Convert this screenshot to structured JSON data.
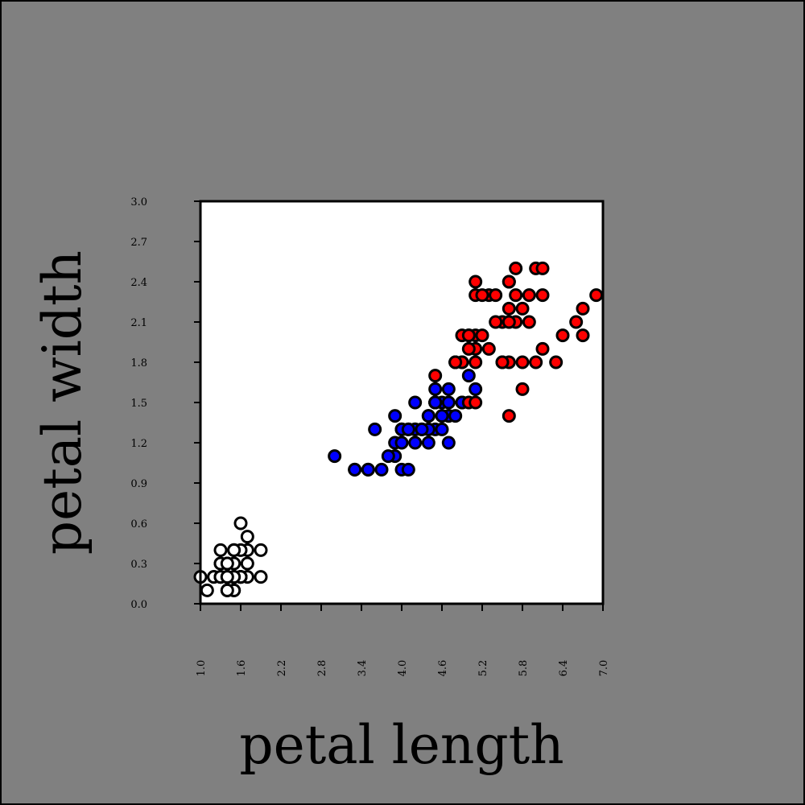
{
  "background_color": "#808080",
  "chart_data": {
    "type": "scatter",
    "xlabel": "petal length",
    "ylabel": "petal width",
    "xlim": [
      1.0,
      7.0
    ],
    "ylim": [
      0.0,
      3.0
    ],
    "xticks": [
      "1.0",
      "1.6",
      "2.2",
      "2.8",
      "3.4",
      "4.0",
      "4.6",
      "5.2",
      "5.8",
      "6.4",
      "7.0"
    ],
    "yticks": [
      "0.0",
      "0.3",
      "0.6",
      "0.9",
      "1.2",
      "1.5",
      "1.8",
      "2.1",
      "2.4",
      "2.7",
      "3.0"
    ],
    "grid": false,
    "legend": "none",
    "series": [
      {
        "color": "#ffffff",
        "points": [
          [
            1.4,
            0.2
          ],
          [
            1.4,
            0.2
          ],
          [
            1.3,
            0.2
          ],
          [
            1.5,
            0.2
          ],
          [
            1.4,
            0.2
          ],
          [
            1.7,
            0.4
          ],
          [
            1.4,
            0.3
          ],
          [
            1.5,
            0.2
          ],
          [
            1.4,
            0.2
          ],
          [
            1.5,
            0.1
          ],
          [
            1.5,
            0.2
          ],
          [
            1.6,
            0.2
          ],
          [
            1.4,
            0.1
          ],
          [
            1.1,
            0.1
          ],
          [
            1.2,
            0.2
          ],
          [
            1.5,
            0.4
          ],
          [
            1.3,
            0.4
          ],
          [
            1.4,
            0.3
          ],
          [
            1.7,
            0.3
          ],
          [
            1.5,
            0.3
          ],
          [
            1.7,
            0.2
          ],
          [
            1.5,
            0.4
          ],
          [
            1.0,
            0.2
          ],
          [
            1.7,
            0.5
          ],
          [
            1.9,
            0.2
          ],
          [
            1.6,
            0.2
          ],
          [
            1.6,
            0.4
          ],
          [
            1.5,
            0.2
          ],
          [
            1.4,
            0.2
          ],
          [
            1.6,
            0.2
          ],
          [
            1.6,
            0.2
          ],
          [
            1.5,
            0.4
          ],
          [
            1.5,
            0.1
          ],
          [
            1.4,
            0.2
          ],
          [
            1.5,
            0.2
          ],
          [
            1.2,
            0.2
          ],
          [
            1.3,
            0.2
          ],
          [
            1.4,
            0.1
          ],
          [
            1.3,
            0.2
          ],
          [
            1.5,
            0.2
          ],
          [
            1.3,
            0.3
          ],
          [
            1.3,
            0.3
          ],
          [
            1.3,
            0.2
          ],
          [
            1.6,
            0.6
          ],
          [
            1.9,
            0.4
          ],
          [
            1.4,
            0.3
          ],
          [
            1.6,
            0.2
          ],
          [
            1.4,
            0.2
          ],
          [
            1.5,
            0.2
          ],
          [
            1.4,
            0.2
          ]
        ]
      },
      {
        "color": "#0000ff",
        "points": [
          [
            4.7,
            1.4
          ],
          [
            4.5,
            1.5
          ],
          [
            4.9,
            1.5
          ],
          [
            4.0,
            1.3
          ],
          [
            4.6,
            1.5
          ],
          [
            4.5,
            1.3
          ],
          [
            4.7,
            1.6
          ],
          [
            3.3,
            1.0
          ],
          [
            4.6,
            1.3
          ],
          [
            3.9,
            1.4
          ],
          [
            3.5,
            1.0
          ],
          [
            4.2,
            1.5
          ],
          [
            4.0,
            1.0
          ],
          [
            4.7,
            1.4
          ],
          [
            3.6,
            1.3
          ],
          [
            4.4,
            1.4
          ],
          [
            4.5,
            1.5
          ],
          [
            4.1,
            1.0
          ],
          [
            4.5,
            1.5
          ],
          [
            3.9,
            1.1
          ],
          [
            4.8,
            1.8
          ],
          [
            4.0,
            1.3
          ],
          [
            4.9,
            1.5
          ],
          [
            4.7,
            1.2
          ],
          [
            4.3,
            1.3
          ],
          [
            4.4,
            1.4
          ],
          [
            4.8,
            1.4
          ],
          [
            5.0,
            1.7
          ],
          [
            4.5,
            1.5
          ],
          [
            3.5,
            1.0
          ],
          [
            3.8,
            1.1
          ],
          [
            3.7,
            1.0
          ],
          [
            3.9,
            1.2
          ],
          [
            5.1,
            1.6
          ],
          [
            4.5,
            1.5
          ],
          [
            4.5,
            1.6
          ],
          [
            4.7,
            1.5
          ],
          [
            4.4,
            1.3
          ],
          [
            4.1,
            1.3
          ],
          [
            4.0,
            1.3
          ],
          [
            4.4,
            1.2
          ],
          [
            4.6,
            1.4
          ],
          [
            4.0,
            1.2
          ],
          [
            3.3,
            1.0
          ],
          [
            4.2,
            1.3
          ],
          [
            4.2,
            1.2
          ],
          [
            4.2,
            1.3
          ],
          [
            4.3,
            1.3
          ],
          [
            3.0,
            1.1
          ],
          [
            4.1,
            1.3
          ]
        ]
      },
      {
        "color": "#ff0000",
        "points": [
          [
            6.0,
            2.5
          ],
          [
            5.1,
            1.9
          ],
          [
            5.9,
            2.1
          ],
          [
            5.6,
            1.8
          ],
          [
            5.8,
            2.2
          ],
          [
            6.6,
            2.1
          ],
          [
            4.5,
            1.7
          ],
          [
            6.3,
            1.8
          ],
          [
            5.8,
            1.8
          ],
          [
            6.1,
            2.5
          ],
          [
            5.1,
            2.0
          ],
          [
            5.3,
            1.9
          ],
          [
            5.5,
            2.1
          ],
          [
            5.0,
            2.0
          ],
          [
            5.1,
            2.4
          ],
          [
            5.3,
            2.3
          ],
          [
            5.5,
            1.8
          ],
          [
            6.7,
            2.2
          ],
          [
            6.9,
            2.3
          ],
          [
            5.0,
            1.5
          ],
          [
            5.7,
            2.3
          ],
          [
            4.9,
            2.0
          ],
          [
            6.7,
            2.0
          ],
          [
            4.9,
            1.8
          ],
          [
            5.7,
            2.1
          ],
          [
            6.0,
            1.8
          ],
          [
            4.8,
            1.8
          ],
          [
            4.9,
            1.8
          ],
          [
            5.6,
            2.1
          ],
          [
            5.8,
            1.6
          ],
          [
            6.1,
            1.9
          ],
          [
            6.4,
            2.0
          ],
          [
            5.6,
            2.2
          ],
          [
            5.1,
            1.5
          ],
          [
            5.6,
            1.4
          ],
          [
            6.1,
            2.3
          ],
          [
            5.6,
            2.4
          ],
          [
            5.5,
            1.8
          ],
          [
            4.8,
            1.8
          ],
          [
            5.4,
            2.1
          ],
          [
            5.6,
            2.4
          ],
          [
            5.1,
            2.3
          ],
          [
            5.9,
            2.3
          ],
          [
            5.7,
            2.5
          ],
          [
            5.2,
            2.3
          ],
          [
            5.0,
            1.9
          ],
          [
            5.2,
            2.0
          ],
          [
            5.4,
            2.3
          ],
          [
            5.1,
            1.8
          ],
          [
            5.0,
            2.0
          ]
        ]
      }
    ]
  }
}
